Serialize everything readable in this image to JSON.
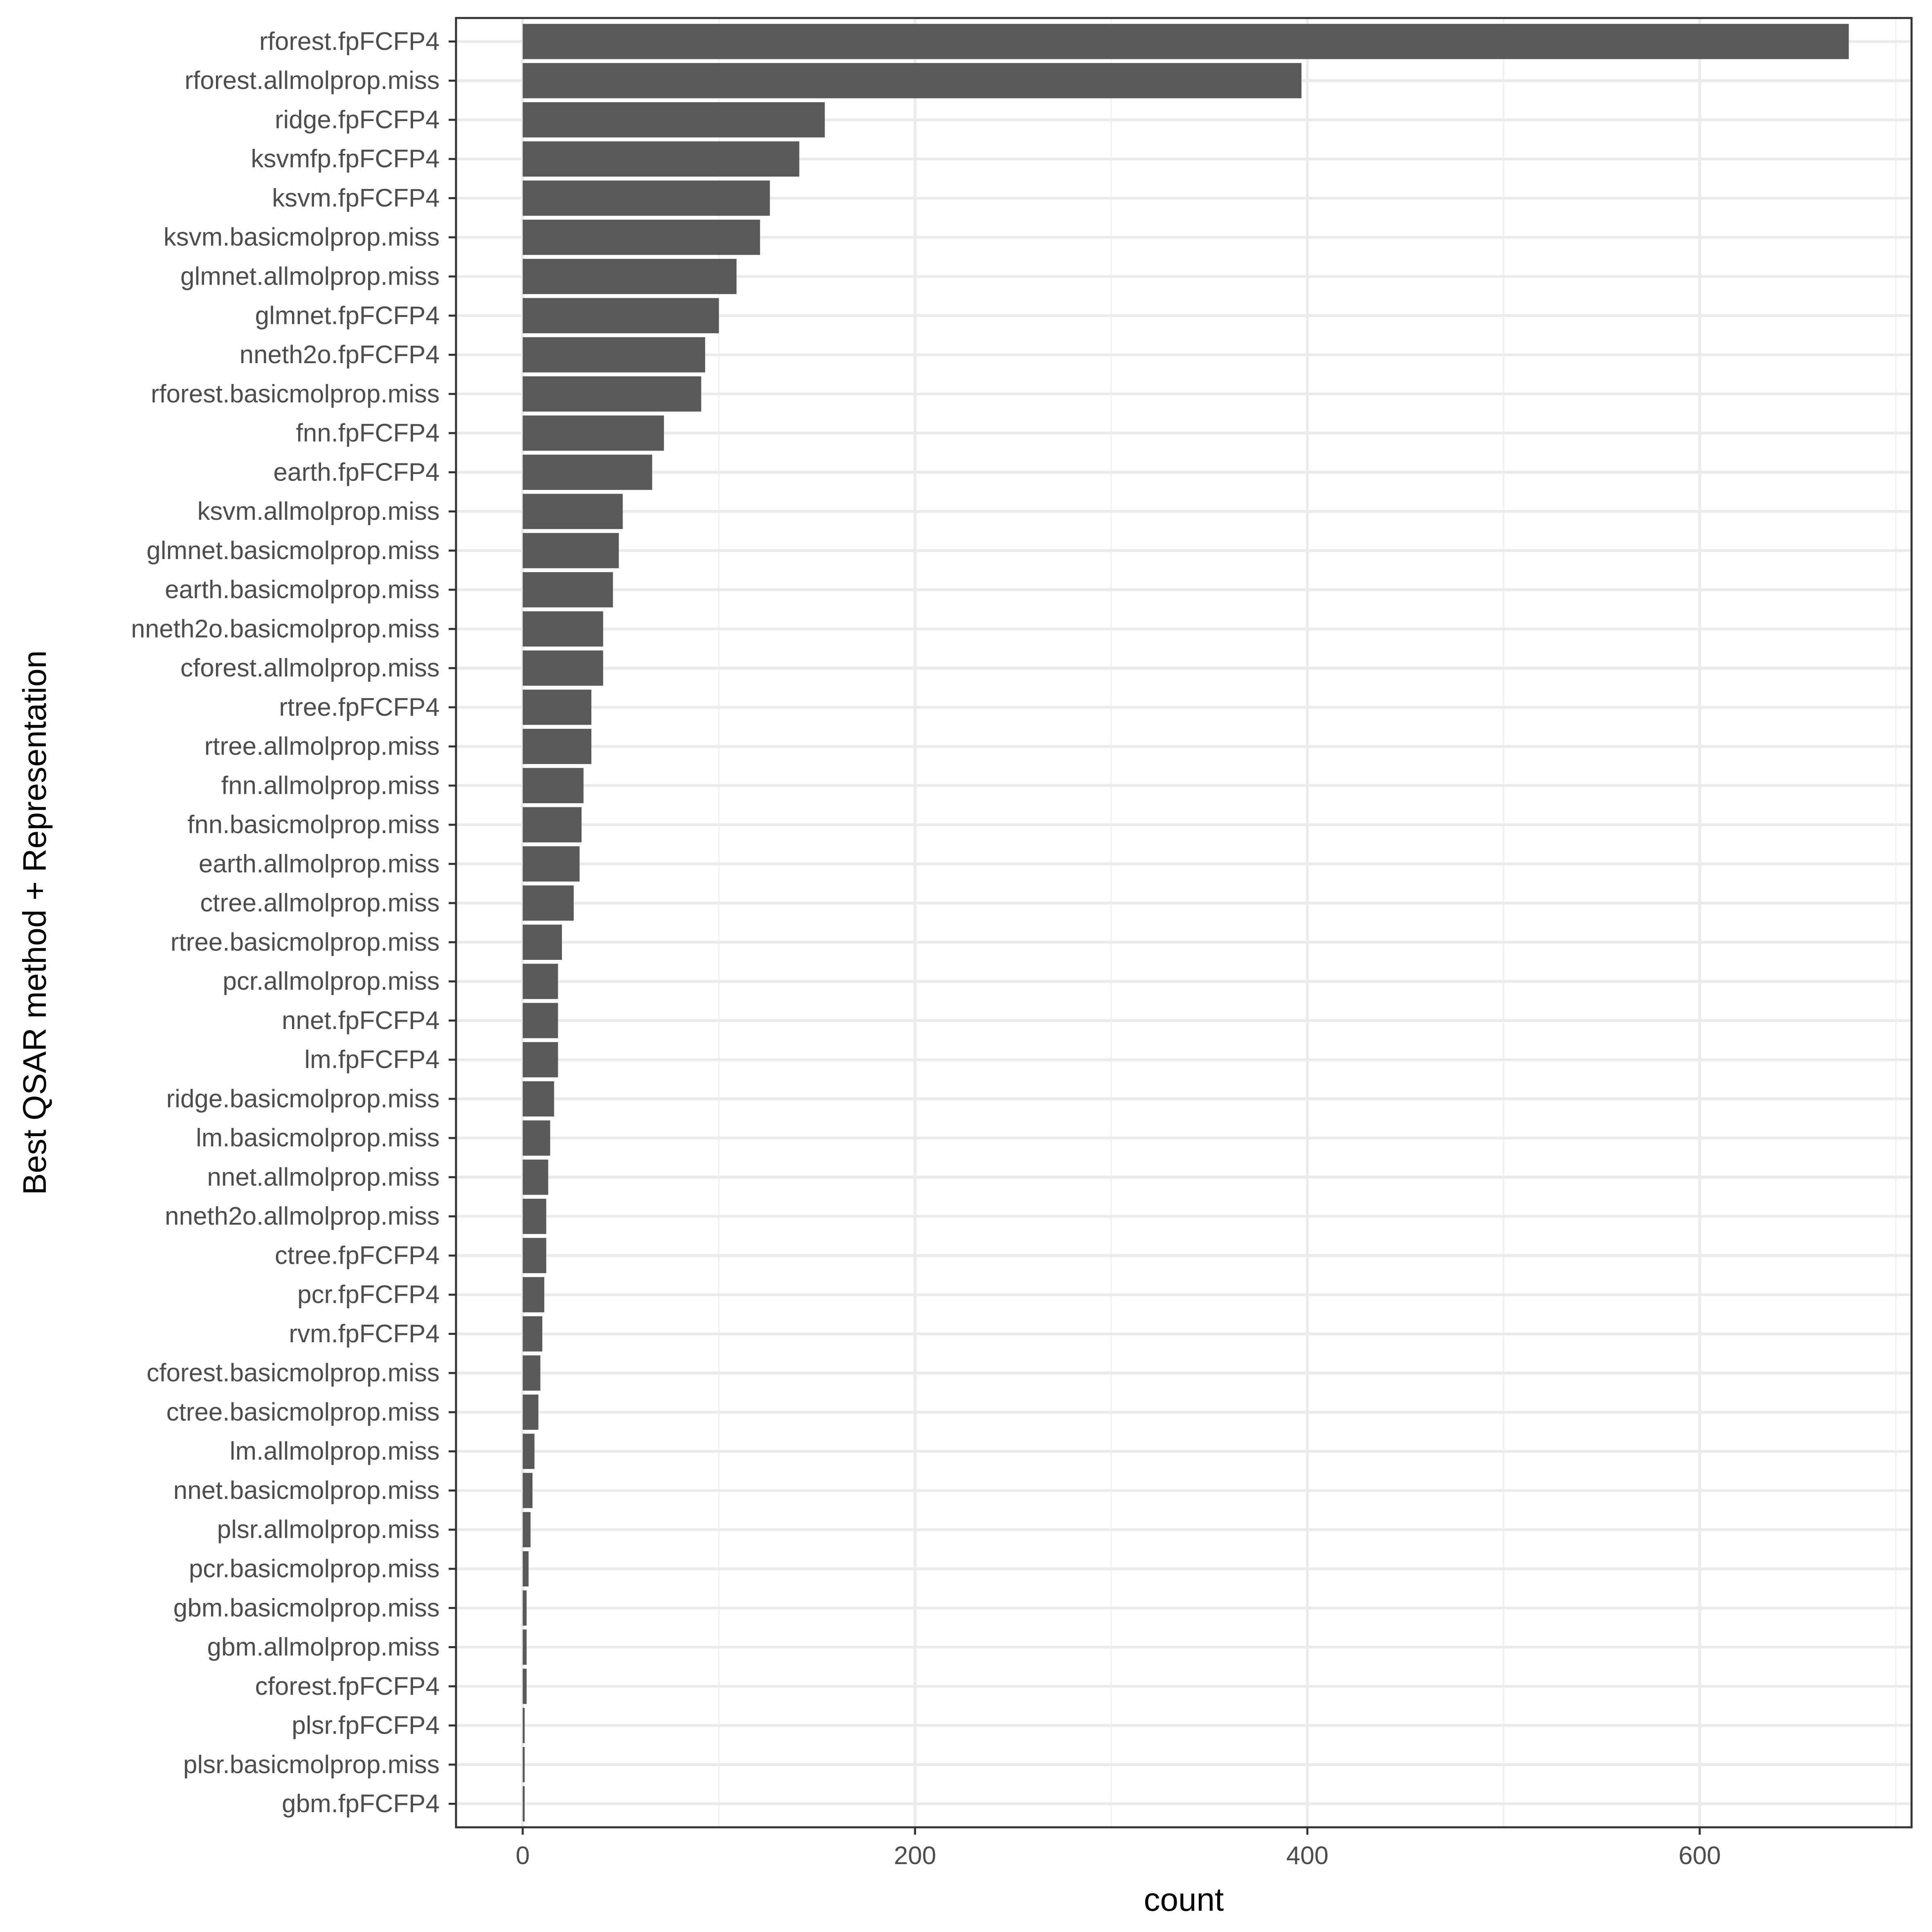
{
  "chart_data": {
    "type": "bar",
    "orientation": "horizontal",
    "xlabel": "count",
    "ylabel": "Best QSAR method + Representation",
    "xlim": [
      -34,
      708
    ],
    "x_ticks": [
      0,
      200,
      400,
      600
    ],
    "grid": true,
    "bar_color": "#595959",
    "categories": [
      "rforest.fpFCFP4",
      "rforest.allmolprop.miss",
      "ridge.fpFCFP4",
      "ksvmfp.fpFCFP4",
      "ksvm.fpFCFP4",
      "ksvm.basicmolprop.miss",
      "glmnet.allmolprop.miss",
      "glmnet.fpFCFP4",
      "nneth2o.fpFCFP4",
      "rforest.basicmolprop.miss",
      "fnn.fpFCFP4",
      "earth.fpFCFP4",
      "ksvm.allmolprop.miss",
      "glmnet.basicmolprop.miss",
      "earth.basicmolprop.miss",
      "nneth2o.basicmolprop.miss",
      "cforest.allmolprop.miss",
      "rtree.fpFCFP4",
      "rtree.allmolprop.miss",
      "fnn.allmolprop.miss",
      "fnn.basicmolprop.miss",
      "earth.allmolprop.miss",
      "ctree.allmolprop.miss",
      "rtree.basicmolprop.miss",
      "pcr.allmolprop.miss",
      "nnet.fpFCFP4",
      "lm.fpFCFP4",
      "ridge.basicmolprop.miss",
      "lm.basicmolprop.miss",
      "nnet.allmolprop.miss",
      "nneth2o.allmolprop.miss",
      "ctree.fpFCFP4",
      "pcr.fpFCFP4",
      "rvm.fpFCFP4",
      "cforest.basicmolprop.miss",
      "ctree.basicmolprop.miss",
      "lm.allmolprop.miss",
      "nnet.basicmolprop.miss",
      "plsr.allmolprop.miss",
      "pcr.basicmolprop.miss",
      "gbm.basicmolprop.miss",
      "gbm.allmolprop.miss",
      "cforest.fpFCFP4",
      "plsr.fpFCFP4",
      "plsr.basicmolprop.miss",
      "gbm.fpFCFP4"
    ],
    "values": [
      676,
      397,
      154,
      141,
      126,
      121,
      109,
      100,
      93,
      91,
      72,
      66,
      51,
      49,
      46,
      41,
      41,
      35,
      35,
      31,
      30,
      29,
      26,
      20,
      18,
      18,
      18,
      16,
      14,
      13,
      12,
      12,
      11,
      10,
      9,
      8,
      6,
      5,
      4,
      3,
      2,
      2,
      2,
      1,
      1,
      1
    ]
  }
}
